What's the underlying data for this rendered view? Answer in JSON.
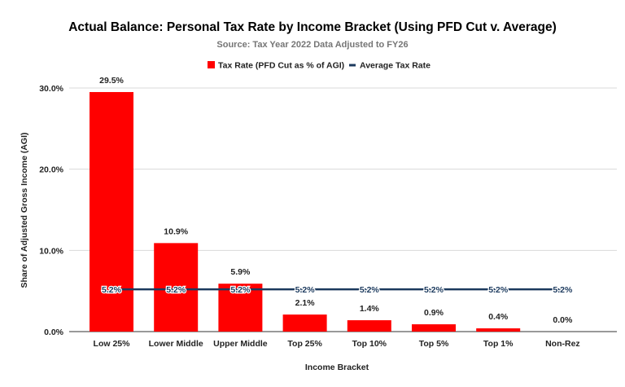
{
  "chart_data": {
    "type": "bar",
    "title": "Actual Balance: Personal Tax Rate by Income Bracket (Using PFD Cut v. Average)",
    "subtitle": "Source: Tax Year 2022 Data Adjusted to FY26",
    "xlabel": "Income Bracket",
    "ylabel": "Share of Adjusted Gross Income (AGI)",
    "ylim": [
      0,
      30
    ],
    "yticks": [
      "0.0%",
      "10.0%",
      "20.0%",
      "30.0%"
    ],
    "ytick_values": [
      0,
      10,
      20,
      30
    ],
    "grid": true,
    "legend_position": "top",
    "categories": [
      "Low 25%",
      "Lower Middle",
      "Upper Middle",
      "Top 25%",
      "Top 10%",
      "Top 5%",
      "Top 1%",
      "Non-Rez"
    ],
    "series": [
      {
        "name": "Tax Rate (PFD Cut as % of AGI)",
        "type": "bar",
        "color": "#ff0000",
        "values": [
          29.5,
          10.9,
          5.9,
          2.1,
          1.4,
          0.9,
          0.4,
          0.0
        ],
        "labels": [
          "29.5%",
          "10.9%",
          "5.9%",
          "2.1%",
          "1.4%",
          "0.9%",
          "0.4%",
          "0.0%"
        ]
      },
      {
        "name": "Average Tax Rate",
        "type": "line",
        "color": "#1c3a5e",
        "values": [
          5.2,
          5.2,
          5.2,
          5.2,
          5.2,
          5.2,
          5.2,
          5.2
        ],
        "labels": [
          "5.2%",
          "5.2%",
          "5.2%",
          "5.2%",
          "5.2%",
          "5.2%",
          "5.2%",
          "5.2%"
        ]
      }
    ]
  }
}
